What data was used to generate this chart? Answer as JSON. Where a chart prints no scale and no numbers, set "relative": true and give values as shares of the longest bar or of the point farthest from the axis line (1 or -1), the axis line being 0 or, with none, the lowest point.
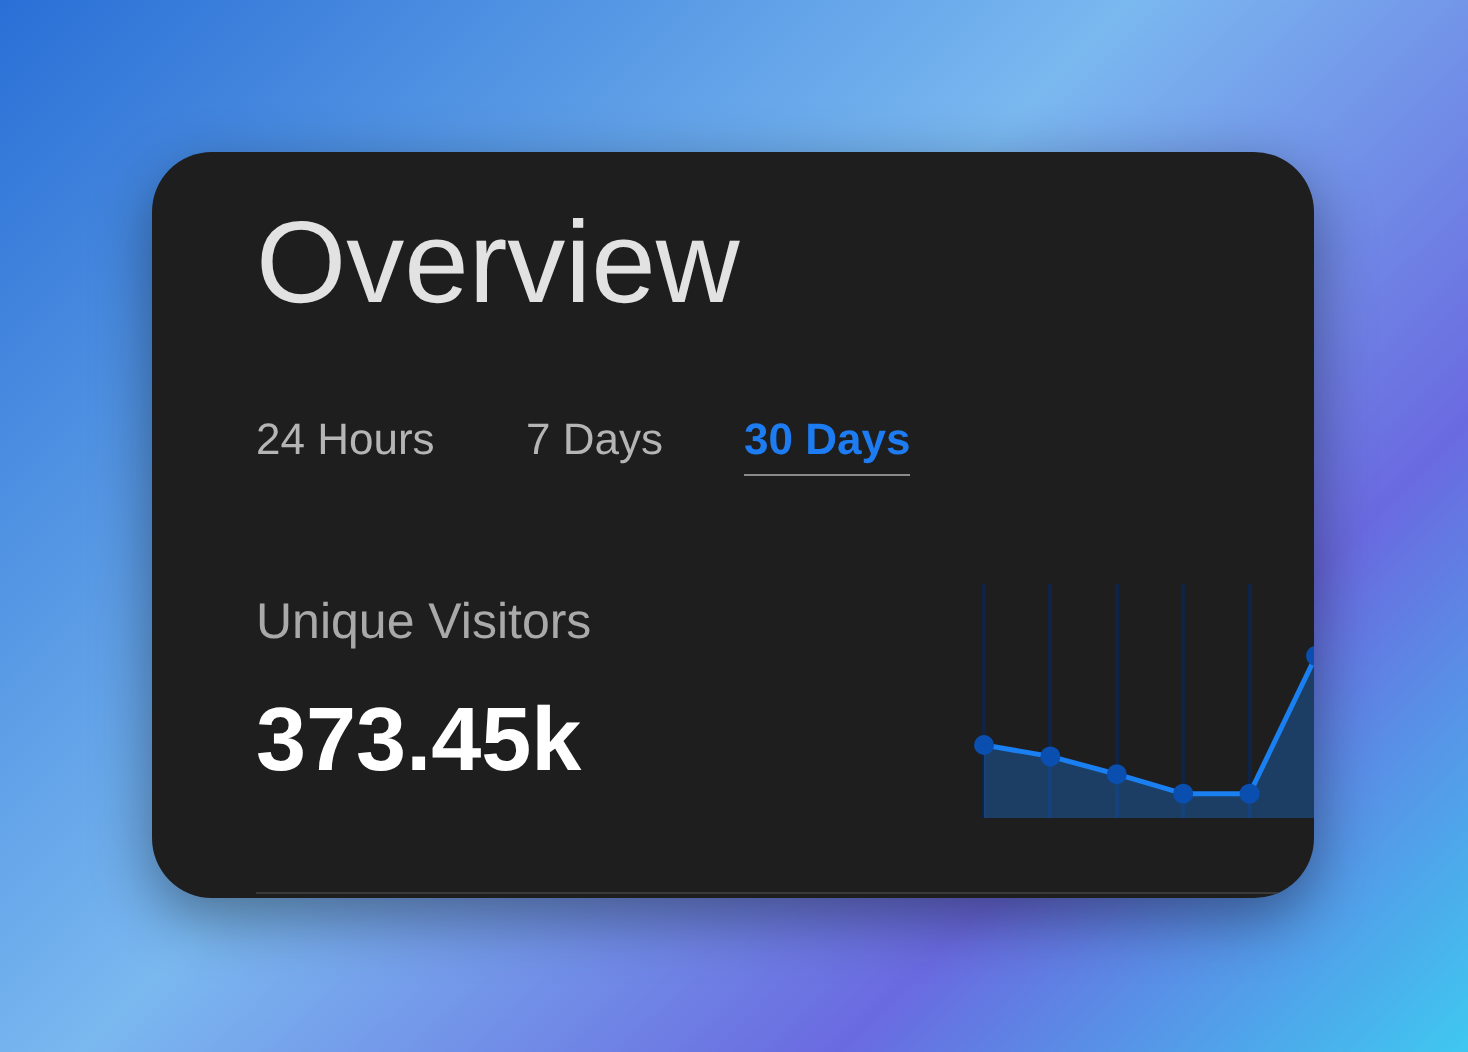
{
  "chart_data": {
    "type": "area",
    "title": "Overview",
    "relative": true,
    "categories": [
      null,
      null,
      null,
      null,
      null,
      null
    ],
    "series": [
      {
        "color": "#1a7ff0",
        "values": [
          0.45,
          0.38,
          0.27,
          0.15,
          0.15,
          1
        ]
      }
    ],
    "grid": "x",
    "legend": false,
    "marker": "circle",
    "annotations": [
      "24 Hours",
      "7 Days",
      "30 Days",
      "Unique Visitors",
      "373.45k"
    ]
  }
}
